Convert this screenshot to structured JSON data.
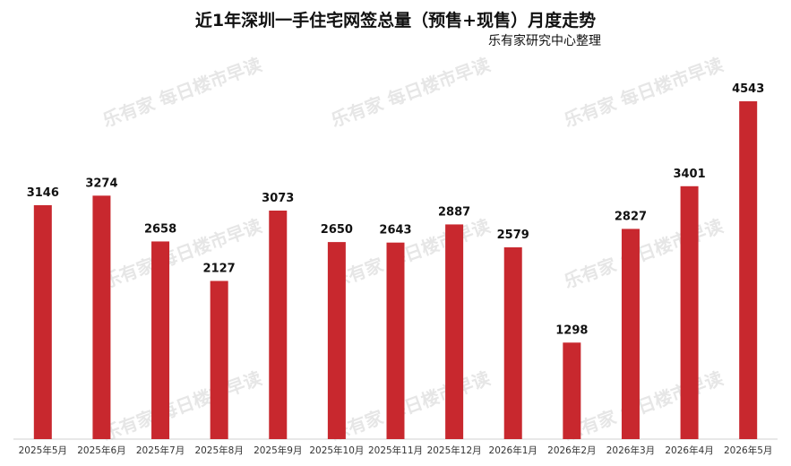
{
  "chart_data": {
    "type": "bar",
    "title": "近1年深圳一手住宅网签总量（预售+现售）月度走势",
    "subtitle": "乐有家研究中心整理",
    "categories": [
      "2025年5月",
      "2025年6月",
      "2025年7月",
      "2025年8月",
      "2025年9月",
      "2025年10月",
      "2025年11月",
      "2025年12月",
      "2026年1月",
      "2026年2月",
      "2026年3月",
      "2026年4月",
      "2026年5月"
    ],
    "values": [
      3146,
      3274,
      2658,
      2127,
      3073,
      2650,
      2643,
      2887,
      2579,
      1298,
      2827,
      3401,
      4543
    ],
    "bar_color": "#c8282e",
    "ylim": [
      0,
      4700
    ],
    "grid": false,
    "xlabel": "",
    "ylabel": ""
  },
  "watermark": {
    "logo": "乐有家",
    "text": "每日楼市早读"
  }
}
